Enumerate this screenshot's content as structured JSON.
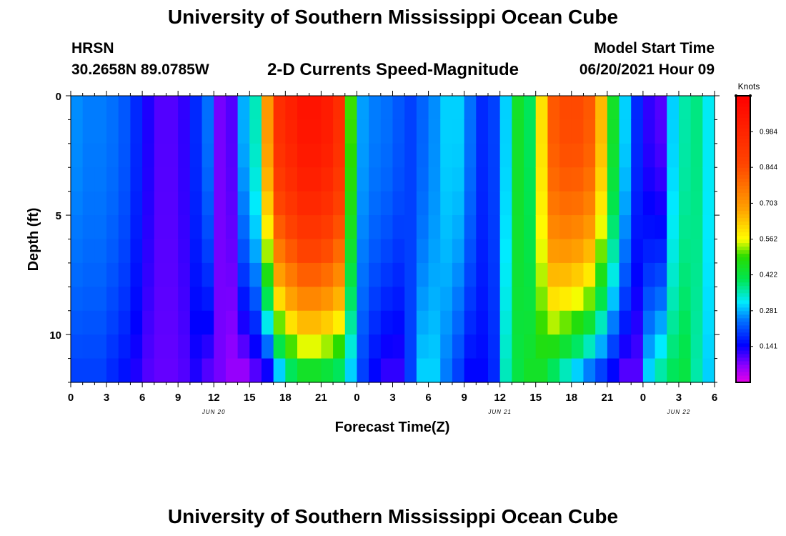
{
  "page": {
    "title_top": "University of Southern Mississippi Ocean Cube",
    "title_bottom": "University of Southern Mississippi Ocean Cube",
    "station": "HRSN",
    "coordinates": "30.2658N  89.0785W",
    "subtitle": "2-D Currents Speed-Magnitude",
    "model_start_label": "Model Start Time",
    "model_start_value": "06/20/2021 Hour 09"
  },
  "chart_data": {
    "type": "heatmap",
    "title": "2-D Currents Speed-Magnitude",
    "xlabel": "Forecast Time(Z)",
    "ylabel": "Depth (ft)",
    "x_range_hours": [
      0,
      54
    ],
    "ylim": [
      0,
      12
    ],
    "x_tick_labels": [
      "0",
      "3",
      "6",
      "9",
      "12",
      "15",
      "18",
      "21",
      "0",
      "3",
      "6",
      "9",
      "12",
      "15",
      "18",
      "21",
      "0",
      "3",
      "6"
    ],
    "y_ticks": [
      0,
      5,
      10
    ],
    "y_tick_labels": [
      "0",
      "5",
      "10"
    ],
    "date_labels": [
      {
        "hour": 12,
        "text": "JUN 20"
      },
      {
        "hour": 36,
        "text": "JUN 21"
      },
      {
        "hour": 51,
        "text": "JUN 22"
      }
    ],
    "colorbar": {
      "label": "Knots",
      "min": 0,
      "max": 1.125,
      "tick_values": [
        0.984,
        0.844,
        0.703,
        0.562,
        0.422,
        0.281,
        0.141
      ],
      "tick_labels": [
        "0.984",
        "0.844",
        "0.703",
        "0.562",
        "0.422",
        "0.281",
        "0.141"
      ]
    },
    "depth_levels": 12,
    "time_columns": 54,
    "surface_speed": [
      0.26,
      0.25,
      0.25,
      0.24,
      0.22,
      0.18,
      0.13,
      0.1,
      0.1,
      0.12,
      0.18,
      0.24,
      0.08,
      0.1,
      0.28,
      0.35,
      0.7,
      0.95,
      1.0,
      1.05,
      1.05,
      1.02,
      0.95,
      0.5,
      0.27,
      0.25,
      0.24,
      0.22,
      0.2,
      0.23,
      0.26,
      0.3,
      0.3,
      0.24,
      0.18,
      0.2,
      0.3,
      0.45,
      0.4,
      0.6,
      0.82,
      0.85,
      0.85,
      0.82,
      0.65,
      0.45,
      0.3,
      0.18,
      0.12,
      0.1,
      0.3,
      0.36,
      0.38,
      0.32
    ],
    "bottom_speed": [
      0.2,
      0.2,
      0.2,
      0.18,
      0.16,
      0.13,
      0.1,
      0.09,
      0.09,
      0.1,
      0.13,
      0.1,
      0.08,
      0.06,
      0.06,
      0.1,
      0.14,
      0.3,
      0.4,
      0.45,
      0.45,
      0.43,
      0.4,
      0.3,
      0.2,
      0.15,
      0.12,
      0.12,
      0.2,
      0.3,
      0.3,
      0.25,
      0.2,
      0.15,
      0.15,
      0.18,
      0.35,
      0.42,
      0.45,
      0.45,
      0.4,
      0.35,
      0.3,
      0.25,
      0.2,
      0.15,
      0.1,
      0.1,
      0.3,
      0.36,
      0.4,
      0.42,
      0.36,
      0.3
    ]
  }
}
